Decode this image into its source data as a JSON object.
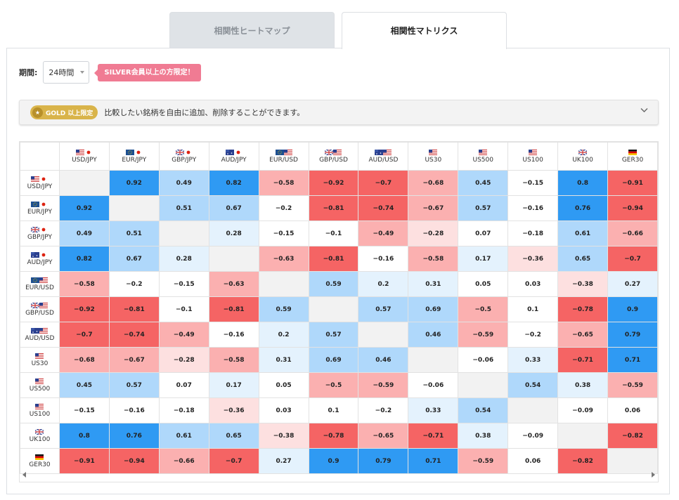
{
  "tabs": [
    {
      "label": "相関性ヒートマップ",
      "active": false
    },
    {
      "label": "相関性マトリクス",
      "active": true
    }
  ],
  "period": {
    "label": "期間:",
    "selected": "24時間",
    "notice": "SILVER会員以上の方限定！"
  },
  "gold": {
    "badge": "GOLD 以上限定",
    "message": "比較したい銘柄を自由に追加、削除することができます。",
    "icon": "chevron-down-icon"
  },
  "colors": {
    "pos_strong": "#2f9af3",
    "pos_mid": "#afd8fb",
    "pos_weak": "#e4f2fd",
    "neg_strong": "#f56464",
    "neg_mid": "#fbb0b0",
    "neg_weak": "#fde0e0"
  },
  "matrix": {
    "symbols": [
      "USD/JPY",
      "EUR/JPY",
      "GBP/JPY",
      "AUD/JPY",
      "EUR/USD",
      "GBP/USD",
      "AUD/USD",
      "US30",
      "US500",
      "US100",
      "UK100",
      "GER30"
    ],
    "flags": [
      [
        "us",
        "jp"
      ],
      [
        "eu",
        "jp"
      ],
      [
        "uk",
        "jp"
      ],
      [
        "au",
        "jp"
      ],
      [
        "eu",
        "us"
      ],
      [
        "uk",
        "us"
      ],
      [
        "au",
        "us"
      ],
      [
        "us"
      ],
      [
        "us"
      ],
      [
        "us"
      ],
      [
        "uk"
      ],
      [
        "de"
      ]
    ],
    "values": [
      [
        null,
        "0.92",
        "0.49",
        "0.82",
        "-0.58",
        "-0.92",
        "-0.7",
        "-0.68",
        "0.45",
        "-0.15",
        "0.8",
        "-0.91"
      ],
      [
        "0.92",
        null,
        "0.51",
        "0.67",
        "-0.2",
        "-0.81",
        "-0.74",
        "-0.67",
        "0.57",
        "-0.16",
        "0.76",
        "-0.94"
      ],
      [
        "0.49",
        "0.51",
        null,
        "0.28",
        "-0.15",
        "-0.1",
        "-0.49",
        "-0.28",
        "0.07",
        "-0.18",
        "0.61",
        "-0.66"
      ],
      [
        "0.82",
        "0.67",
        "0.28",
        null,
        "-0.63",
        "-0.81",
        "-0.16",
        "-0.58",
        "0.17",
        "-0.36",
        "0.65",
        "-0.7"
      ],
      [
        "-0.58",
        "-0.2",
        "-0.15",
        "-0.63",
        null,
        "0.59",
        "0.2",
        "0.31",
        "0.05",
        "0.03",
        "-0.38",
        "0.27"
      ],
      [
        "-0.92",
        "-0.81",
        "-0.1",
        "-0.81",
        "0.59",
        null,
        "0.57",
        "0.69",
        "-0.5",
        "0.1",
        "-0.78",
        "0.9"
      ],
      [
        "-0.7",
        "-0.74",
        "-0.49",
        "-0.16",
        "0.2",
        "0.57",
        null,
        "0.46",
        "-0.59",
        "-0.2",
        "-0.65",
        "0.79"
      ],
      [
        "-0.68",
        "-0.67",
        "-0.28",
        "-0.58",
        "0.31",
        "0.69",
        "0.46",
        null,
        "-0.06",
        "0.33",
        "-0.71",
        "0.71"
      ],
      [
        "0.45",
        "0.57",
        "0.07",
        "0.17",
        "0.05",
        "-0.5",
        "-0.59",
        "-0.06",
        null,
        "0.54",
        "0.38",
        "-0.59"
      ],
      [
        "-0.15",
        "-0.16",
        "-0.18",
        "-0.36",
        "0.03",
        "0.1",
        "-0.2",
        "0.33",
        "0.54",
        null,
        "-0.09",
        "0.06"
      ],
      [
        "0.8",
        "0.76",
        "0.61",
        "0.65",
        "-0.38",
        "-0.78",
        "-0.65",
        "-0.71",
        "0.38",
        "-0.09",
        null,
        "-0.82"
      ],
      [
        "-0.91",
        "-0.94",
        "-0.66",
        "-0.7",
        "0.27",
        "0.9",
        "0.79",
        "0.71",
        "-0.59",
        "0.06",
        "-0.82",
        null
      ]
    ]
  }
}
